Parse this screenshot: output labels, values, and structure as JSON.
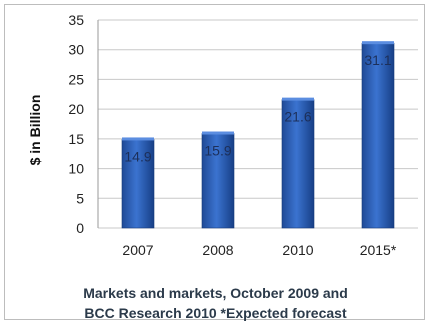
{
  "chart_data": {
    "type": "bar",
    "categories": [
      "2007",
      "2008",
      "2010",
      "2015*"
    ],
    "values": [
      14.9,
      15.9,
      21.6,
      31.1
    ],
    "data_labels": [
      "14.9",
      "15.9",
      "21.6",
      "31.1"
    ],
    "ylabel": "$ in Billion",
    "xlabel": "",
    "ylim": [
      0,
      35
    ],
    "yticks": [
      0,
      5,
      10,
      15,
      20,
      25,
      30,
      35
    ],
    "grid": true,
    "bar_color": "#2a5db0"
  },
  "caption": {
    "line1": "Markets and markets, October 2009 and",
    "line2": "BCC Research 2010 *Expected forecast"
  }
}
